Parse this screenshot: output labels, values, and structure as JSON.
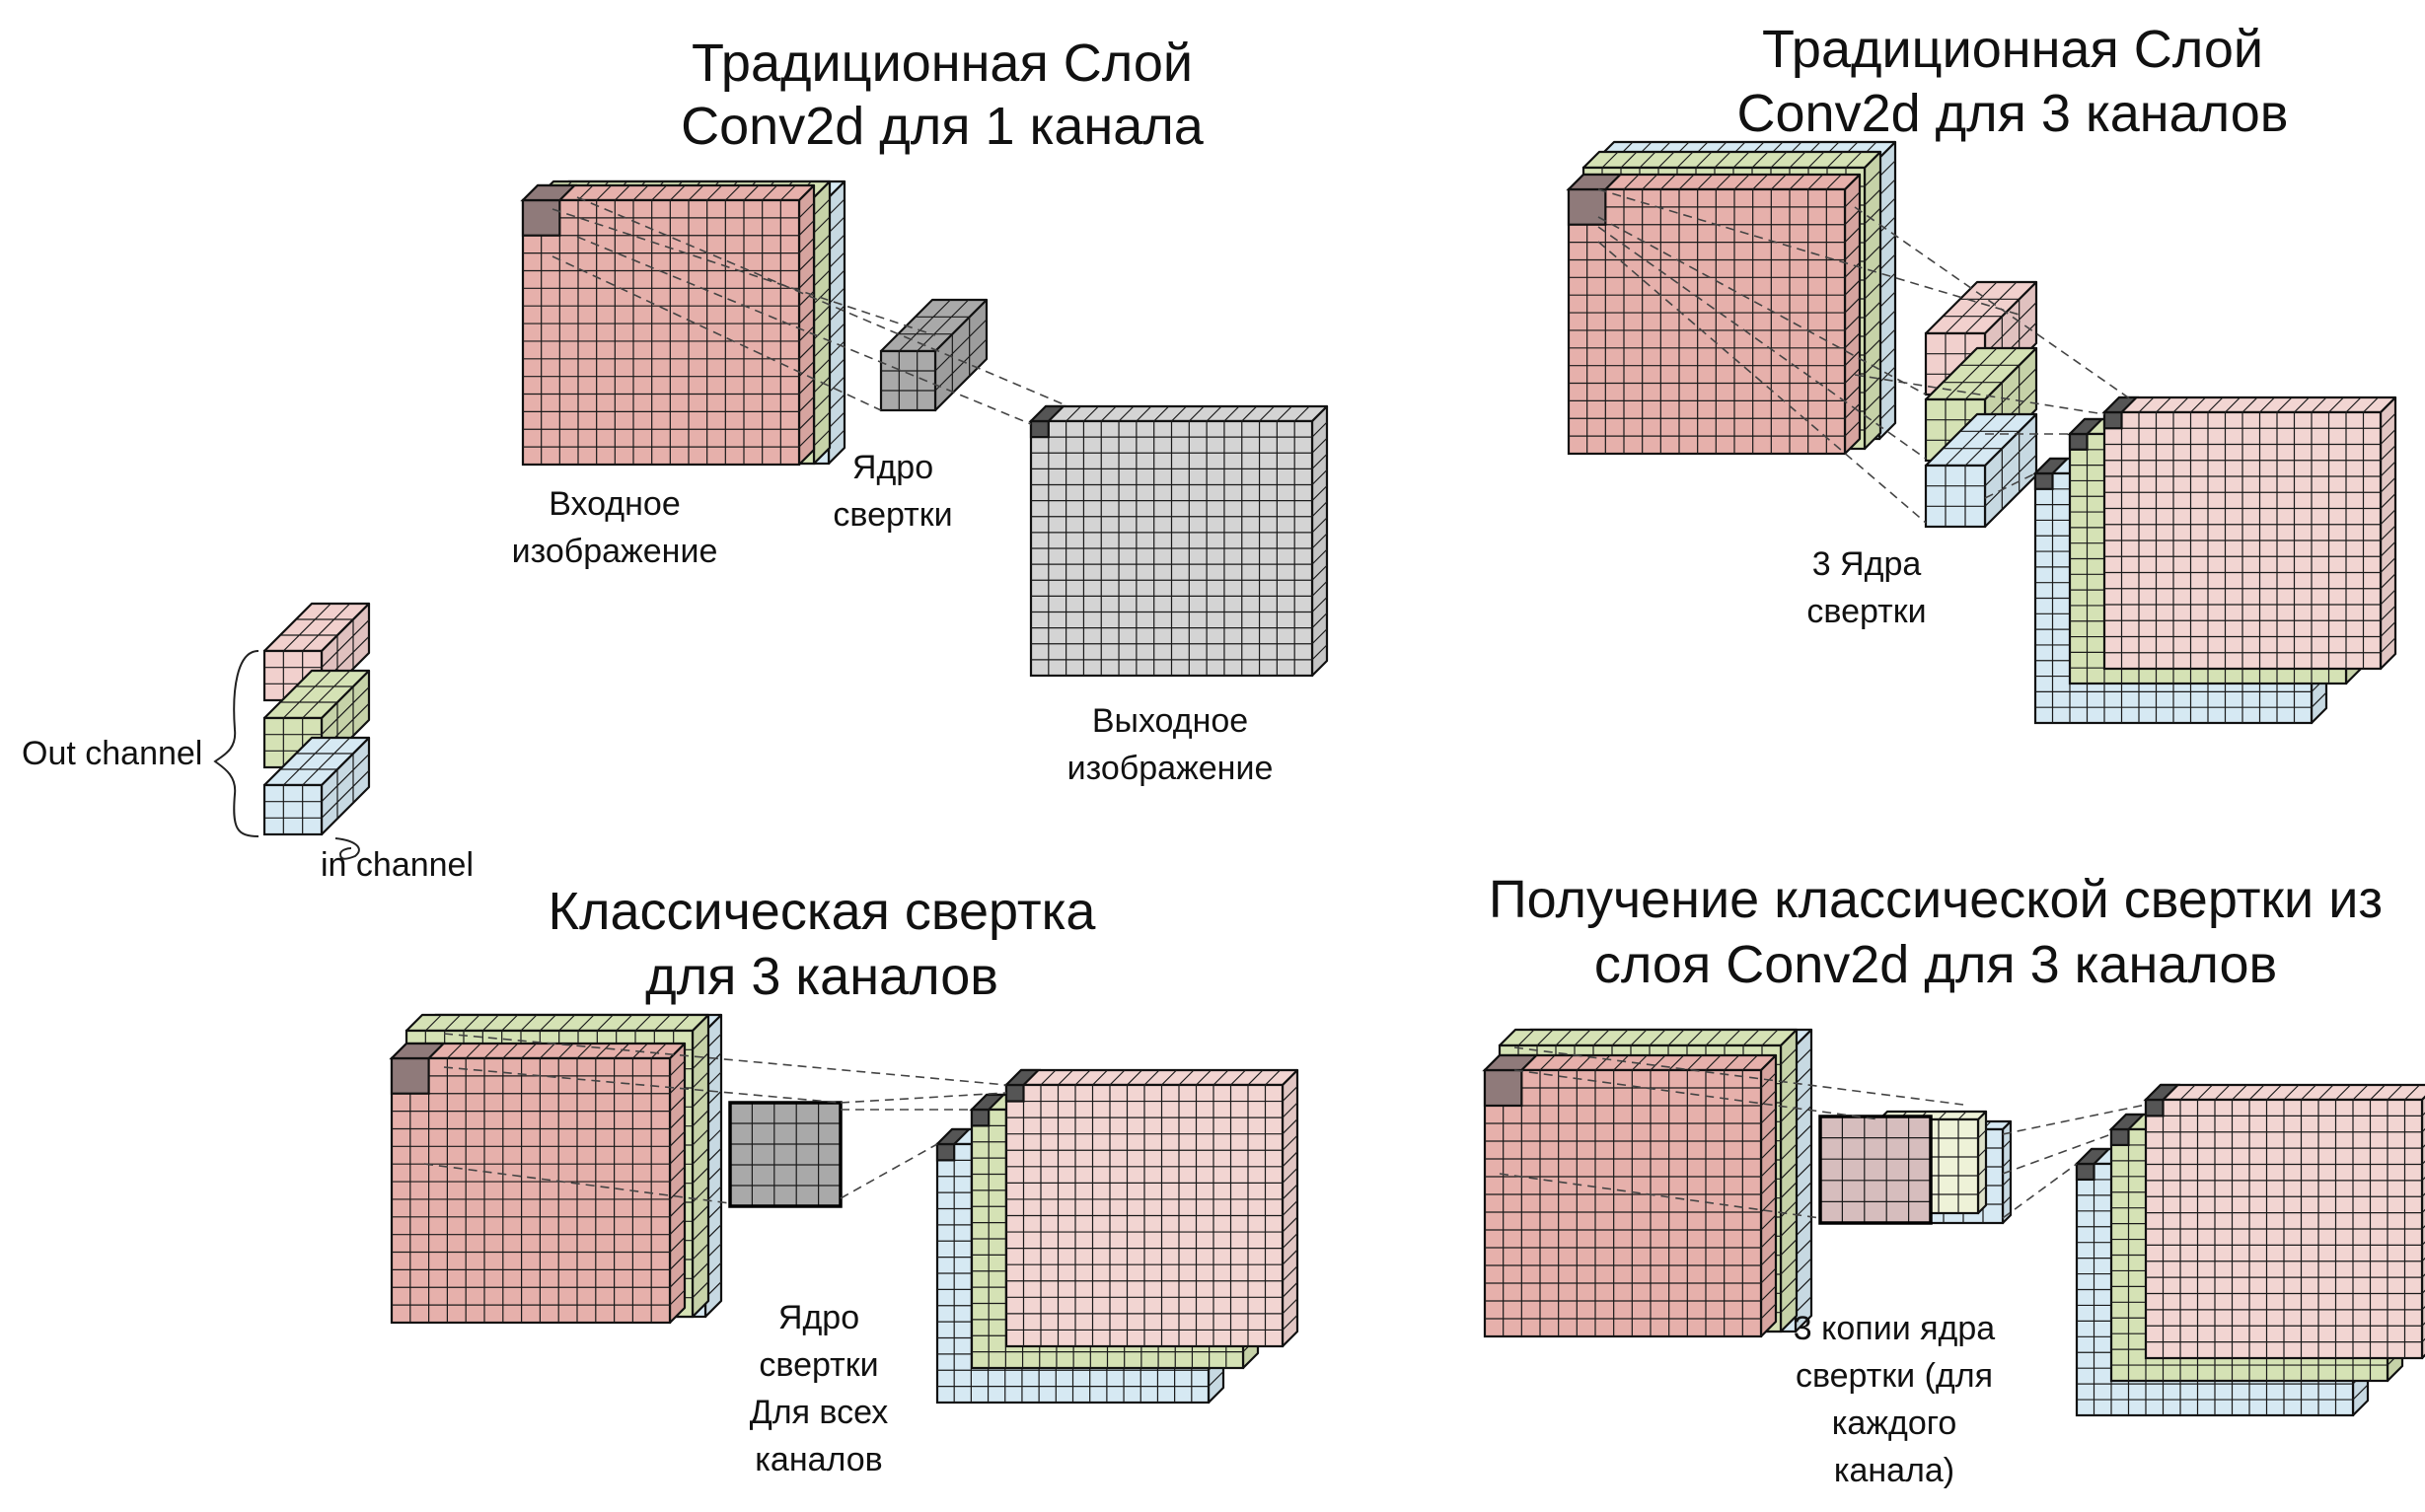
{
  "colors": {
    "red": "#e6b0ab",
    "green": "#d5e2b5",
    "blue": "#d6e9f3",
    "gray": "#d4d4d4",
    "kernel_gray": "#a9a9a9",
    "highlight": "#8f7a7a",
    "dark": "#555555"
  },
  "panels": {
    "top_left": {
      "title_line1": "Традиционная Слой",
      "title_line2": "Conv2d для 1 канала",
      "input_label_line1": "Входное",
      "input_label_line2": "изображение",
      "kernel_label_line1": "Ядро",
      "kernel_label_line2": "свертки",
      "output_label_line1": "Выходное",
      "output_label_line2": "изображение"
    },
    "top_right": {
      "title_line1": "Традиционная Слой",
      "title_line2": "Conv2d для 3 каналов",
      "kernels_label_line1": "3 Ядра",
      "kernels_label_line2": "свертки"
    },
    "bottom_left": {
      "title_line1": "Классическая свертка",
      "title_line2": "для 3 каналов",
      "kernel_label_line1": "Ядро",
      "kernel_label_line2": "свертки",
      "kernel_label_line3": "Для всех",
      "kernel_label_line4": "каналов"
    },
    "bottom_right": {
      "title_line1": "Получение классической свертки из",
      "title_line2": "слоя Conv2d  для 3 каналов",
      "kernels_label_line1": "3 копии ядра",
      "kernels_label_line2": "свертки (для",
      "kernels_label_line3": "каждого",
      "kernels_label_line4": "канала)"
    }
  },
  "legend": {
    "out_channel": "Out channel",
    "in_channel": "in channel"
  }
}
